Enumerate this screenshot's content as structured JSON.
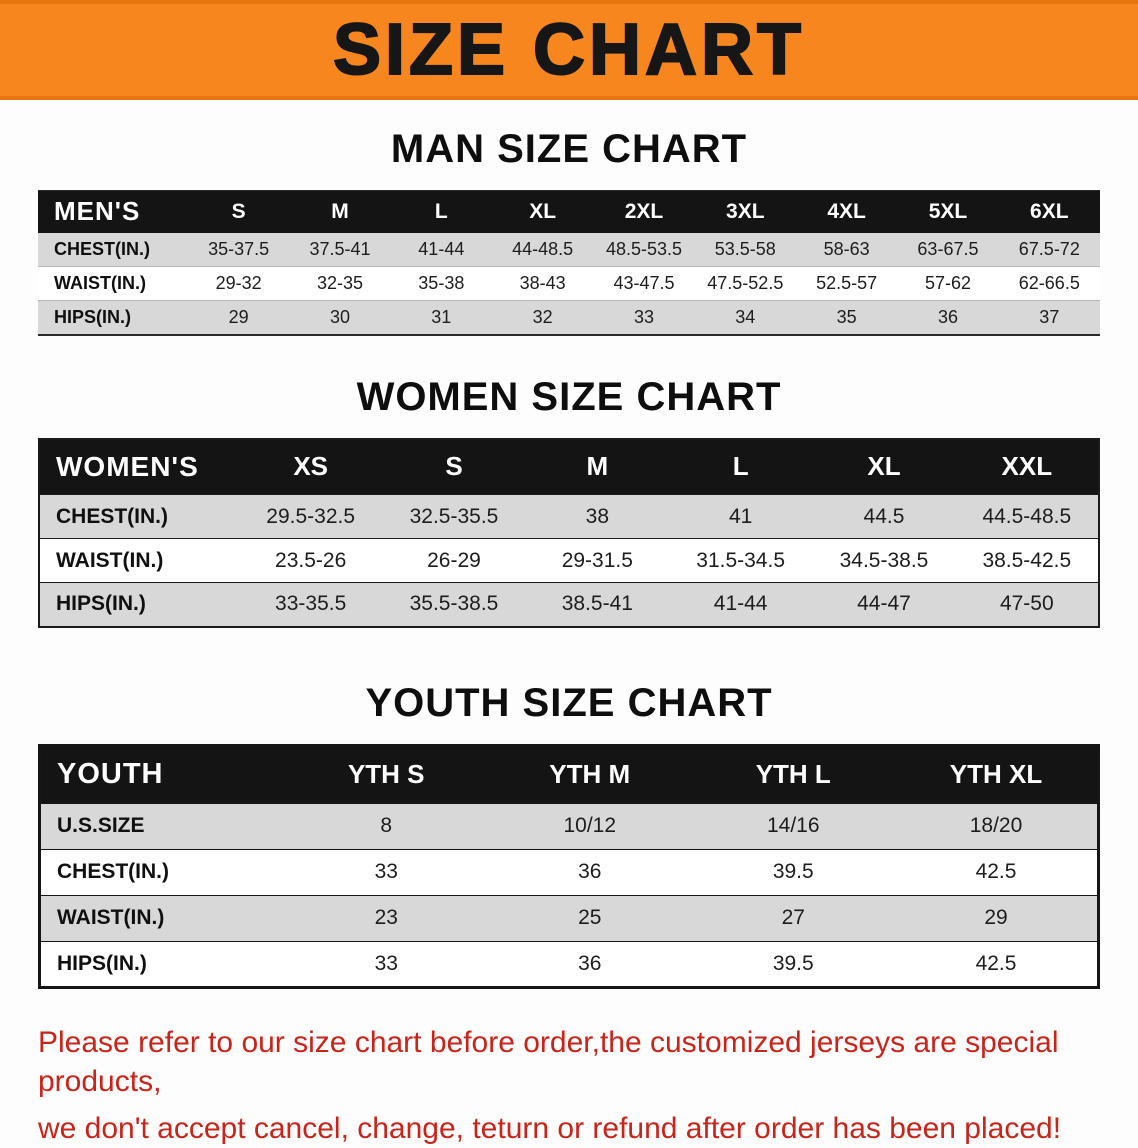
{
  "banner": {
    "title": "SIZE CHART",
    "bg_color": "#f6861d",
    "text_color": "#161616"
  },
  "sections": [
    {
      "heading": "MAN SIZE CHART",
      "table": {
        "corner": "MEN'S",
        "columns": [
          "S",
          "M",
          "L",
          "XL",
          "2XL",
          "3XL",
          "4XL",
          "5XL",
          "6XL"
        ],
        "rows": [
          {
            "label": "CHEST(IN.)",
            "values": [
              "35-37.5",
              "37.5-41",
              "41-44",
              "44-48.5",
              "48.5-53.5",
              "53.5-58",
              "58-63",
              "63-67.5",
              "67.5-72"
            ]
          },
          {
            "label": "WAIST(IN.)",
            "values": [
              "29-32",
              "32-35",
              "35-38",
              "38-43",
              "43-47.5",
              "47.5-52.5",
              "52.5-57",
              "57-62",
              "62-66.5"
            ]
          },
          {
            "label": "HIPS(IN.)",
            "values": [
              "29",
              "30",
              "31",
              "32",
              "33",
              "34",
              "35",
              "36",
              "37"
            ]
          }
        ]
      }
    },
    {
      "heading": "WOMEN SIZE CHART",
      "table": {
        "corner": "WOMEN'S",
        "columns": [
          "XS",
          "S",
          "M",
          "L",
          "XL",
          "XXL"
        ],
        "rows": [
          {
            "label": "CHEST(IN.)",
            "values": [
              "29.5-32.5",
              "32.5-35.5",
              "38",
              "41",
              "44.5",
              "44.5-48.5"
            ]
          },
          {
            "label": "WAIST(IN.)",
            "values": [
              "23.5-26",
              "26-29",
              "29-31.5",
              "31.5-34.5",
              "34.5-38.5",
              "38.5-42.5"
            ]
          },
          {
            "label": "HIPS(IN.)",
            "values": [
              "33-35.5",
              "35.5-38.5",
              "38.5-41",
              "41-44",
              "44-47",
              "47-50"
            ]
          }
        ]
      }
    },
    {
      "heading": "YOUTH SIZE CHART",
      "table": {
        "corner": "YOUTH",
        "columns": [
          "YTH S",
          "YTH M",
          "YTH L",
          "YTH XL"
        ],
        "rows": [
          {
            "label": "U.S.SIZE",
            "values": [
              "8",
              "10/12",
              "14/16",
              "18/20"
            ]
          },
          {
            "label": "CHEST(IN.)",
            "values": [
              "33",
              "36",
              "39.5",
              "42.5"
            ]
          },
          {
            "label": "WAIST(IN.)",
            "values": [
              "23",
              "25",
              "27",
              "29"
            ]
          },
          {
            "label": "HIPS(IN.)",
            "values": [
              "33",
              "36",
              "39.5",
              "42.5"
            ]
          }
        ]
      }
    }
  ],
  "footer": {
    "line1": "Please refer to our size chart before order,the customized jerseys are special products,",
    "line2": "we don't accept cancel, change, teturn or refund after order has been placed!",
    "color": "#c9241a"
  }
}
